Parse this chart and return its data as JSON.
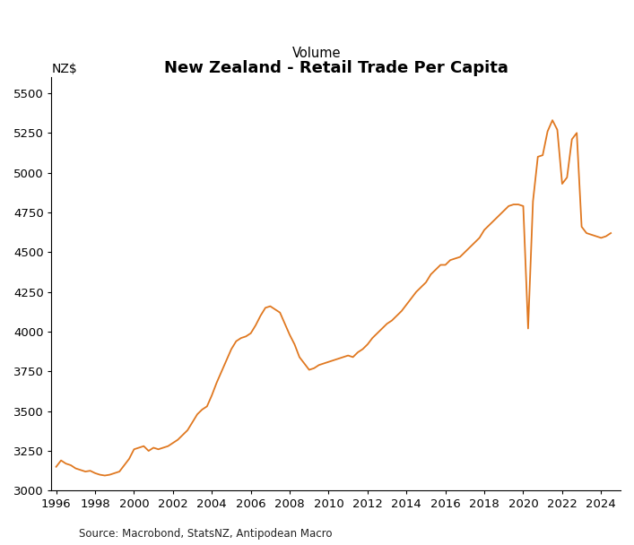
{
  "title": "New Zealand - Retail Trade Per Capita",
  "subtitle": "Volume",
  "ylabel": "NZ$",
  "source": "Source: Macrobond, StatsNZ, Antipodean Macro",
  "line_color": "#E07820",
  "background_color": "#ffffff",
  "xlim": [
    1995.75,
    2025.0
  ],
  "ylim": [
    3000,
    5600
  ],
  "yticks": [
    3000,
    3250,
    3500,
    3750,
    4000,
    4250,
    4500,
    4750,
    5000,
    5250,
    5500
  ],
  "xticks": [
    1996,
    1998,
    2000,
    2002,
    2004,
    2006,
    2008,
    2010,
    2012,
    2014,
    2016,
    2018,
    2020,
    2022,
    2024
  ],
  "data": {
    "x": [
      1996.0,
      1996.25,
      1996.5,
      1996.75,
      1997.0,
      1997.25,
      1997.5,
      1997.75,
      1998.0,
      1998.25,
      1998.5,
      1998.75,
      1999.0,
      1999.25,
      1999.5,
      1999.75,
      2000.0,
      2000.25,
      2000.5,
      2000.75,
      2001.0,
      2001.25,
      2001.5,
      2001.75,
      2002.0,
      2002.25,
      2002.5,
      2002.75,
      2003.0,
      2003.25,
      2003.5,
      2003.75,
      2004.0,
      2004.25,
      2004.5,
      2004.75,
      2005.0,
      2005.25,
      2005.5,
      2005.75,
      2006.0,
      2006.25,
      2006.5,
      2006.75,
      2007.0,
      2007.25,
      2007.5,
      2007.75,
      2008.0,
      2008.25,
      2008.5,
      2008.75,
      2009.0,
      2009.25,
      2009.5,
      2009.75,
      2010.0,
      2010.25,
      2010.5,
      2010.75,
      2011.0,
      2011.25,
      2011.5,
      2011.75,
      2012.0,
      2012.25,
      2012.5,
      2012.75,
      2013.0,
      2013.25,
      2013.5,
      2013.75,
      2014.0,
      2014.25,
      2014.5,
      2014.75,
      2015.0,
      2015.25,
      2015.5,
      2015.75,
      2016.0,
      2016.25,
      2016.5,
      2016.75,
      2017.0,
      2017.25,
      2017.5,
      2017.75,
      2018.0,
      2018.25,
      2018.5,
      2018.75,
      2019.0,
      2019.25,
      2019.5,
      2019.75,
      2020.0,
      2020.25,
      2020.5,
      2020.75,
      2021.0,
      2021.25,
      2021.5,
      2021.75,
      2022.0,
      2022.25,
      2022.5,
      2022.75,
      2023.0,
      2023.25,
      2023.5,
      2023.75,
      2024.0,
      2024.25,
      2024.5
    ],
    "y": [
      3150,
      3190,
      3170,
      3160,
      3140,
      3130,
      3120,
      3125,
      3110,
      3100,
      3095,
      3100,
      3110,
      3120,
      3160,
      3200,
      3260,
      3270,
      3280,
      3250,
      3270,
      3260,
      3270,
      3280,
      3300,
      3320,
      3350,
      3380,
      3430,
      3480,
      3510,
      3530,
      3600,
      3680,
      3750,
      3820,
      3890,
      3940,
      3960,
      3970,
      3990,
      4040,
      4100,
      4150,
      4160,
      4140,
      4120,
      4050,
      3980,
      3920,
      3840,
      3800,
      3760,
      3770,
      3790,
      3800,
      3810,
      3820,
      3830,
      3840,
      3850,
      3840,
      3870,
      3890,
      3920,
      3960,
      3990,
      4020,
      4050,
      4070,
      4100,
      4130,
      4170,
      4210,
      4250,
      4280,
      4310,
      4360,
      4390,
      4420,
      4420,
      4450,
      4460,
      4470,
      4500,
      4530,
      4560,
      4590,
      4640,
      4670,
      4700,
      4730,
      4760,
      4790,
      4800,
      4800,
      4790,
      4020,
      4820,
      5100,
      5110,
      5260,
      5330,
      5270,
      4930,
      4970,
      5210,
      5250,
      4660,
      4620,
      4610,
      4600,
      4590,
      4600,
      4620
    ]
  }
}
